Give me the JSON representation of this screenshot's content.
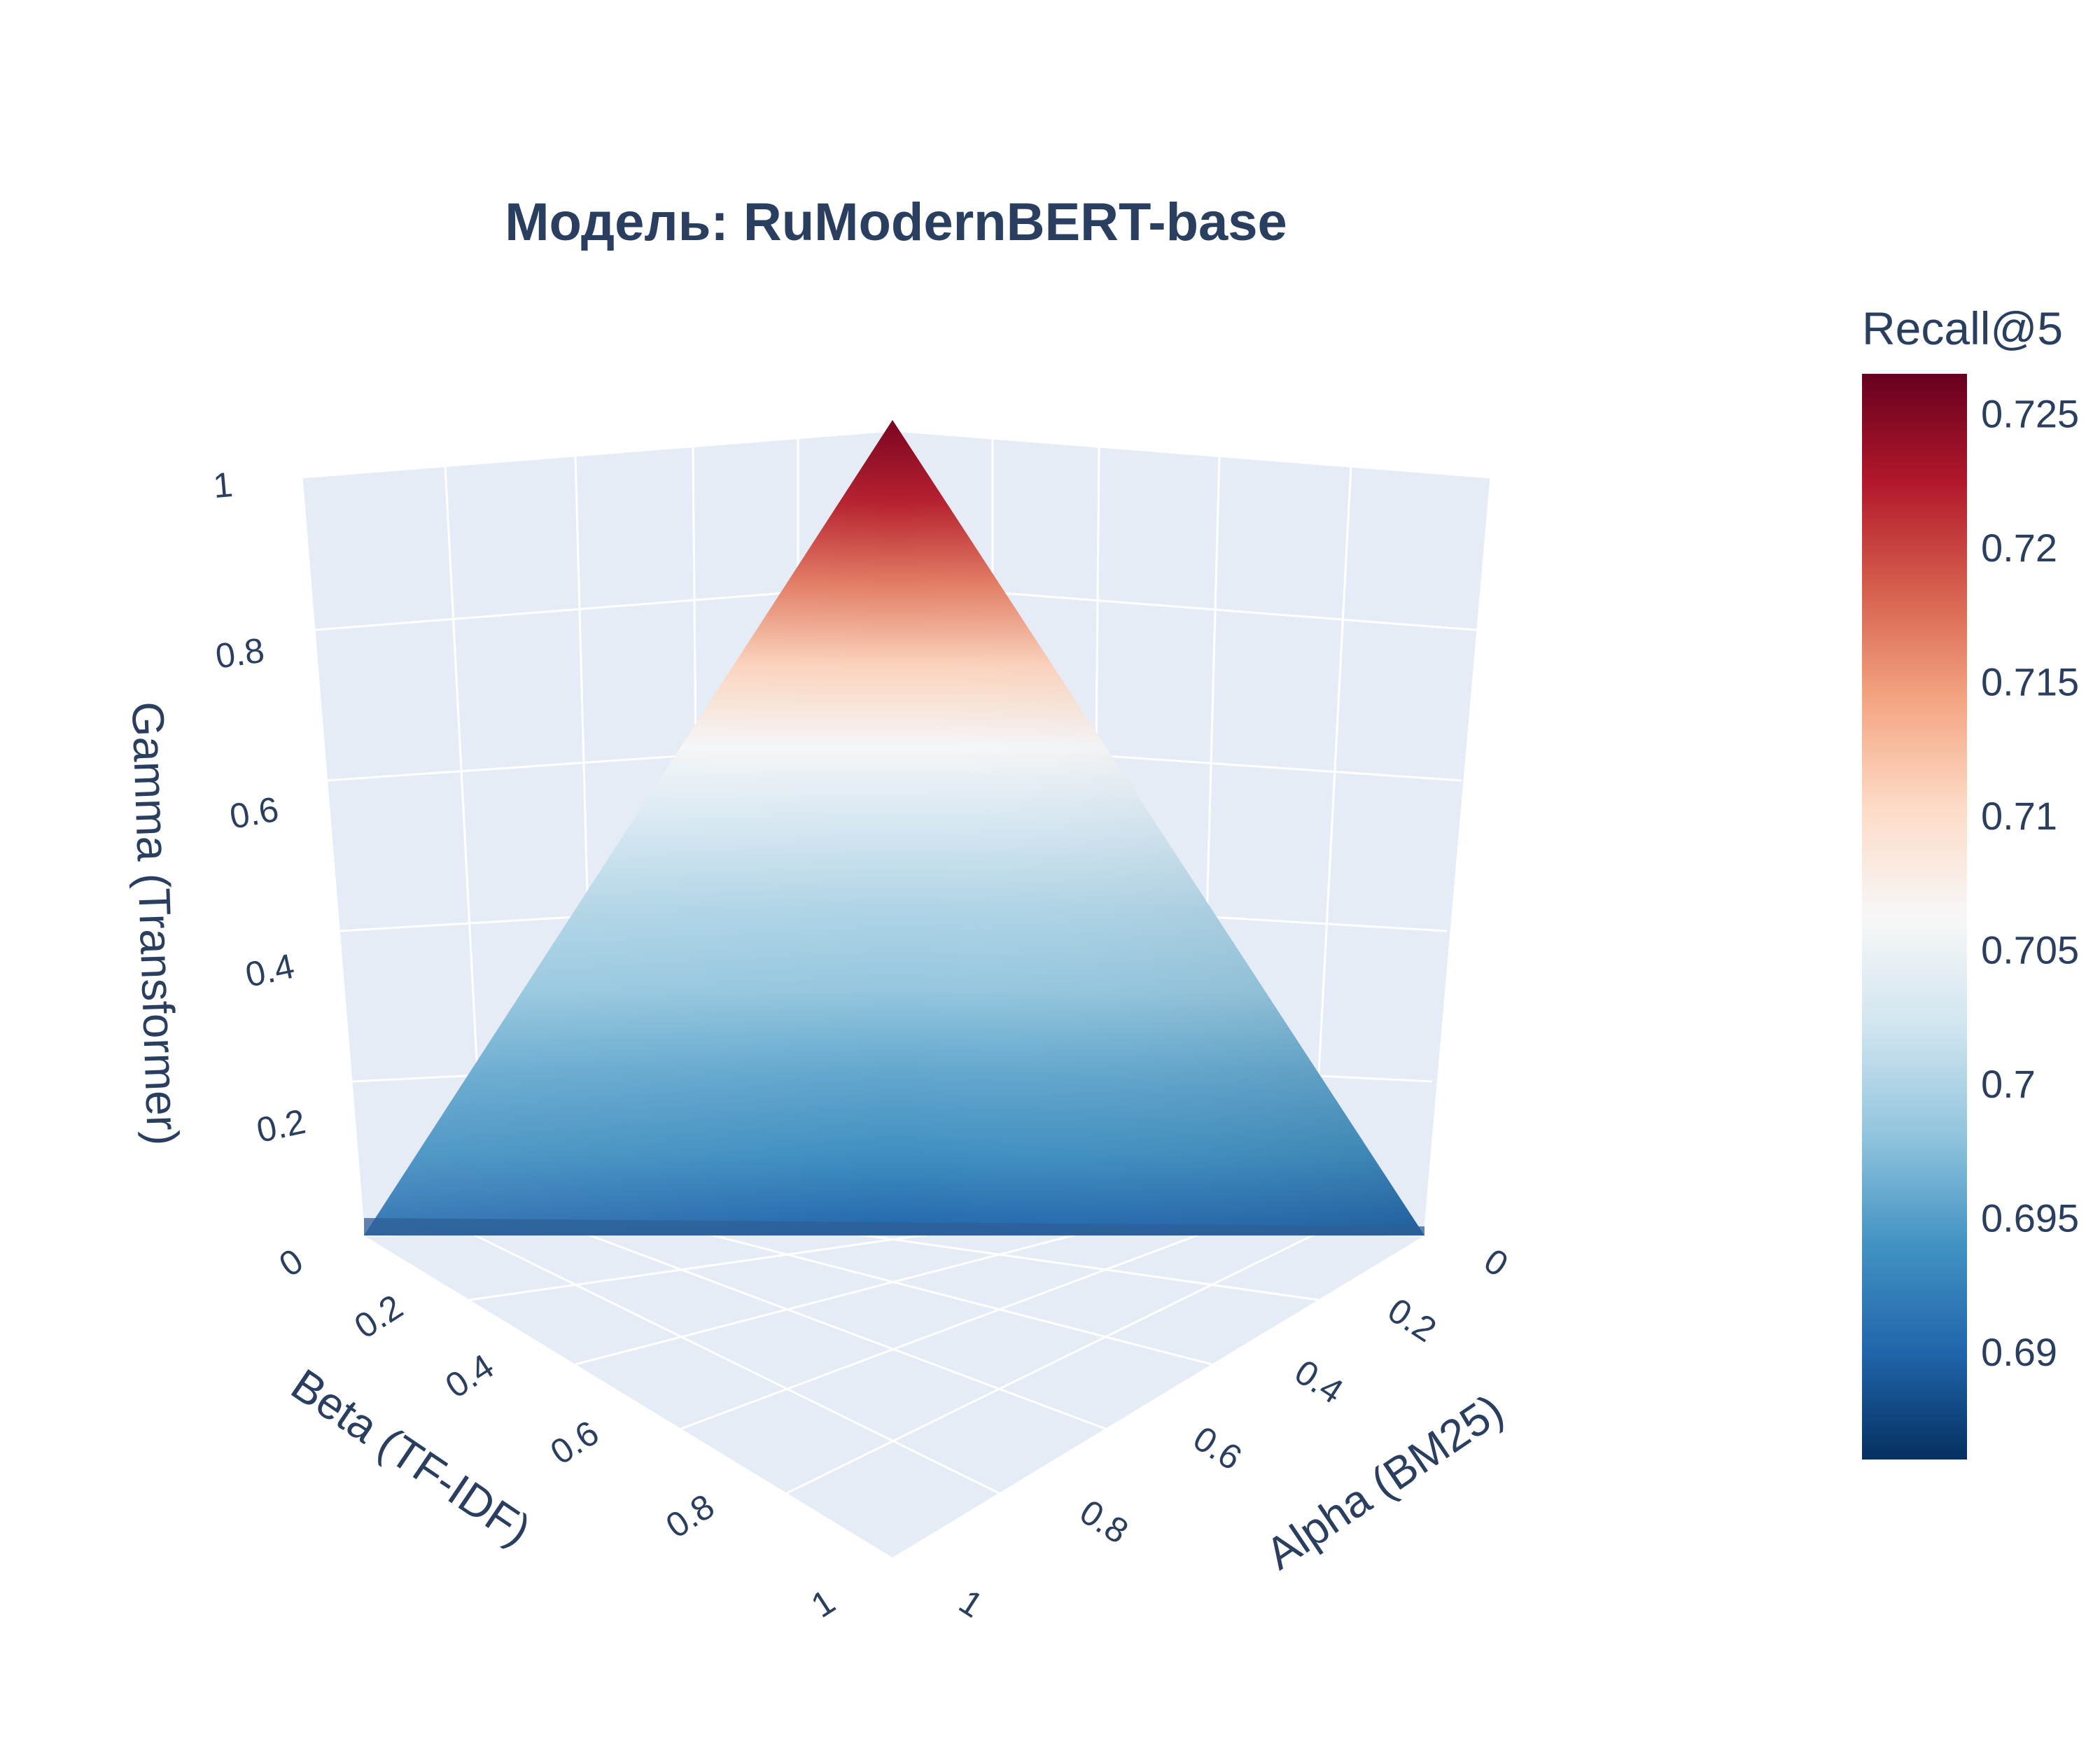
{
  "chart_data": {
    "type": "surface",
    "title": "Модель: RuModernBERT-base",
    "x_axis": {
      "label": "Alpha (BM25)",
      "range": [
        0,
        1
      ],
      "ticks": [
        "0",
        "0.2",
        "0.4",
        "0.6",
        "0.8",
        "1"
      ]
    },
    "y_axis": {
      "label": "Beta (TF-IDF)",
      "range": [
        0,
        1
      ],
      "ticks": [
        "0",
        "0.2",
        "0.4",
        "0.6",
        "0.8",
        "1"
      ]
    },
    "z_axis": {
      "label": "Gamma (Transformer)",
      "range": [
        0,
        1
      ],
      "ticks": [
        "0.2",
        "0.4",
        "0.6",
        "0.8",
        "1"
      ]
    },
    "colorbar": {
      "title": "Recall@5",
      "range": [
        0.686,
        0.7265
      ],
      "ticks": [
        "0.69",
        "0.695",
        "0.7",
        "0.705",
        "0.71",
        "0.715",
        "0.72",
        "0.725"
      ],
      "colorscale": [
        "#053061",
        "#2166ac",
        "#4393c3",
        "#92c5de",
        "#d1e5f0",
        "#f7f7f7",
        "#fddbc7",
        "#f4a582",
        "#d6604d",
        "#b2182b",
        "#67001f"
      ]
    },
    "constraint": "alpha + beta + gamma = 1",
    "recall_by_gamma": {
      "gamma": [
        0.0,
        0.1,
        0.2,
        0.3,
        0.4,
        0.5,
        0.6,
        0.7,
        0.8,
        0.9,
        1.0
      ],
      "recall_at_beta_side": [
        0.692,
        0.6955,
        0.697,
        0.699,
        0.7005,
        0.703,
        0.7065,
        0.7115,
        0.717,
        0.722,
        0.7255
      ],
      "recall_at_alpha_side": [
        0.688,
        0.692,
        0.6945,
        0.6975,
        0.6995,
        0.702,
        0.7055,
        0.7105,
        0.7165,
        0.722,
        0.7255
      ]
    },
    "grid": true,
    "background": "#e5ecf6"
  }
}
